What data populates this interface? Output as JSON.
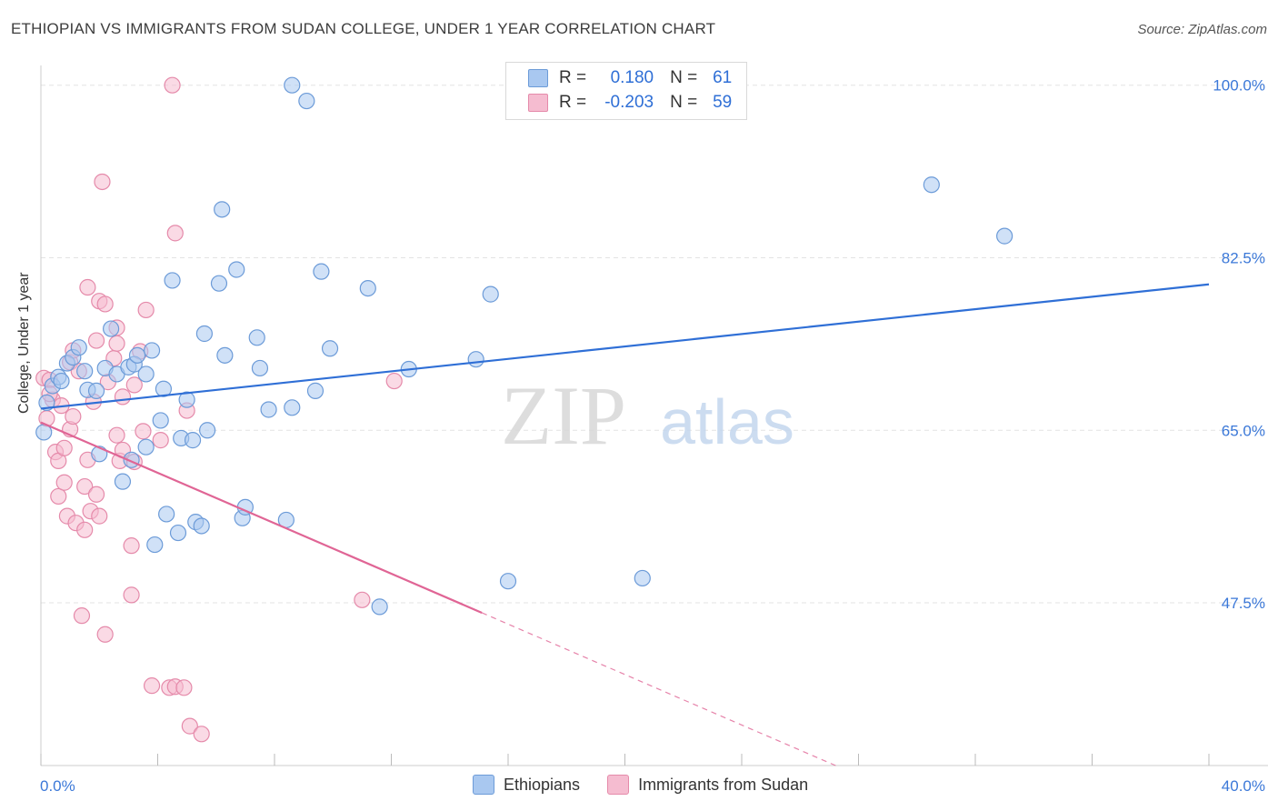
{
  "title": "ETHIOPIAN VS IMMIGRANTS FROM SUDAN COLLEGE, UNDER 1 YEAR CORRELATION CHART",
  "source": "Source: ZipAtlas.com",
  "watermark": {
    "zip": "ZIP",
    "atlas": "atlas"
  },
  "colors": {
    "blue_fill": "#a9c8f0",
    "blue_stroke": "#6c9bd8",
    "blue_line": "#2f6fd6",
    "pink_fill": "#f5bcd0",
    "pink_stroke": "#e58aaa",
    "pink_line": "#e06595",
    "axis_label": "#3b78d8",
    "grid": "#e3e3e3"
  },
  "legend": {
    "rows": [
      {
        "r_label": "R =",
        "r_value": "0.180",
        "n_label": "N =",
        "n_value": "61",
        "color": "#a9c8f0"
      },
      {
        "r_label": "R =",
        "r_value": "-0.203",
        "n_label": "N =",
        "n_value": "59",
        "color": "#f5bcd0"
      }
    ]
  },
  "bottom_legend": [
    {
      "label": "Ethiopians",
      "color": "#a9c8f0"
    },
    {
      "label": "Immigrants from Sudan",
      "color": "#f5bcd0"
    }
  ],
  "chart_data": {
    "type": "scatter",
    "title": "ETHIOPIAN VS IMMIGRANTS FROM SUDAN COLLEGE, UNDER 1 YEAR CORRELATION CHART",
    "xlabel": "",
    "ylabel": "College, Under 1 year",
    "xlim": [
      0,
      40
    ],
    "ylim": [
      31,
      102
    ],
    "x_tick_labels": [
      {
        "value": 0,
        "label": "0.0%"
      },
      {
        "value": 40,
        "label": "40.0%"
      }
    ],
    "y_tick_labels": [
      {
        "value": 100,
        "label": "100.0%"
      },
      {
        "value": 82.5,
        "label": "82.5%"
      },
      {
        "value": 65,
        "label": "65.0%"
      },
      {
        "value": 47.5,
        "label": "47.5%"
      }
    ],
    "series": [
      {
        "name": "Ethiopians",
        "r": 0.18,
        "n": 61,
        "trend": {
          "x0": 0,
          "y0": 67.2,
          "x1": 40,
          "y1": 79.8,
          "dash_from_x": null
        },
        "points": [
          [
            0.1,
            64.8
          ],
          [
            0.2,
            67.8
          ],
          [
            0.4,
            69.5
          ],
          [
            0.6,
            70.4
          ],
          [
            0.7,
            70.0
          ],
          [
            0.9,
            71.8
          ],
          [
            1.1,
            72.4
          ],
          [
            1.3,
            73.4
          ],
          [
            1.5,
            71.0
          ],
          [
            1.6,
            69.1
          ],
          [
            1.9,
            69.0
          ],
          [
            2.0,
            62.6
          ],
          [
            2.2,
            71.3
          ],
          [
            2.4,
            75.3
          ],
          [
            2.6,
            70.7
          ],
          [
            2.8,
            59.8
          ],
          [
            3.0,
            71.4
          ],
          [
            3.1,
            62.0
          ],
          [
            3.2,
            71.7
          ],
          [
            3.3,
            72.6
          ],
          [
            3.6,
            63.3
          ],
          [
            3.6,
            70.7
          ],
          [
            3.8,
            73.1
          ],
          [
            3.9,
            53.4
          ],
          [
            4.1,
            66.0
          ],
          [
            4.2,
            69.2
          ],
          [
            4.3,
            56.5
          ],
          [
            4.5,
            80.2
          ],
          [
            4.7,
            54.6
          ],
          [
            4.8,
            64.2
          ],
          [
            5.0,
            68.1
          ],
          [
            5.2,
            64.0
          ],
          [
            5.3,
            55.7
          ],
          [
            5.5,
            55.3
          ],
          [
            5.6,
            74.8
          ],
          [
            5.7,
            65.0
          ],
          [
            6.1,
            79.9
          ],
          [
            6.2,
            87.4
          ],
          [
            6.3,
            72.6
          ],
          [
            6.7,
            81.3
          ],
          [
            6.9,
            56.1
          ],
          [
            7.0,
            57.2
          ],
          [
            7.4,
            74.4
          ],
          [
            7.5,
            71.3
          ],
          [
            7.8,
            67.1
          ],
          [
            8.4,
            55.9
          ],
          [
            8.6,
            67.3
          ],
          [
            8.6,
            100.0
          ],
          [
            9.1,
            98.4
          ],
          [
            9.4,
            69.0
          ],
          [
            9.6,
            81.1
          ],
          [
            9.9,
            73.3
          ],
          [
            11.2,
            79.4
          ],
          [
            11.6,
            47.1
          ],
          [
            12.6,
            71.2
          ],
          [
            14.9,
            72.2
          ],
          [
            15.4,
            78.8
          ],
          [
            16.0,
            49.7
          ],
          [
            20.6,
            50.0
          ],
          [
            30.5,
            89.9
          ],
          [
            33.0,
            84.7
          ]
        ]
      },
      {
        "name": "Immigrants from Sudan",
        "r": -0.203,
        "n": 59,
        "trend": {
          "x0": 0,
          "y0": 65.8,
          "x1": 28,
          "y1": 30.0,
          "dash_from_x": 15.1
        },
        "points": [
          [
            0.1,
            70.3
          ],
          [
            0.2,
            66.2
          ],
          [
            0.3,
            70.1
          ],
          [
            0.4,
            68.1
          ],
          [
            0.5,
            62.8
          ],
          [
            0.6,
            61.9
          ],
          [
            0.6,
            58.3
          ],
          [
            0.7,
            67.5
          ],
          [
            0.8,
            59.7
          ],
          [
            0.8,
            63.2
          ],
          [
            0.9,
            56.3
          ],
          [
            1.0,
            65.1
          ],
          [
            1.0,
            71.9
          ],
          [
            1.1,
            73.1
          ],
          [
            1.2,
            55.6
          ],
          [
            1.3,
            71.0
          ],
          [
            1.4,
            46.2
          ],
          [
            1.5,
            54.9
          ],
          [
            1.5,
            59.3
          ],
          [
            1.6,
            79.5
          ],
          [
            1.6,
            62.0
          ],
          [
            1.7,
            56.8
          ],
          [
            1.8,
            67.9
          ],
          [
            1.9,
            74.1
          ],
          [
            1.9,
            58.5
          ],
          [
            2.0,
            78.1
          ],
          [
            2.0,
            56.3
          ],
          [
            2.1,
            90.2
          ],
          [
            2.2,
            77.8
          ],
          [
            2.2,
            44.3
          ],
          [
            2.3,
            69.9
          ],
          [
            2.5,
            72.3
          ],
          [
            2.6,
            73.8
          ],
          [
            2.6,
            75.4
          ],
          [
            2.6,
            64.5
          ],
          [
            2.7,
            61.9
          ],
          [
            2.8,
            68.4
          ],
          [
            2.8,
            63.0
          ],
          [
            3.1,
            53.3
          ],
          [
            3.1,
            48.3
          ],
          [
            3.2,
            69.6
          ],
          [
            3.2,
            61.8
          ],
          [
            3.4,
            73.0
          ],
          [
            3.5,
            64.9
          ],
          [
            3.6,
            77.2
          ],
          [
            3.8,
            39.1
          ],
          [
            4.1,
            64.0
          ],
          [
            4.4,
            38.9
          ],
          [
            4.5,
            100.0
          ],
          [
            4.6,
            39.0
          ],
          [
            4.6,
            85.0
          ],
          [
            4.9,
            38.9
          ],
          [
            5.1,
            35.0
          ],
          [
            5.5,
            34.2
          ],
          [
            11.0,
            47.8
          ],
          [
            12.1,
            70.0
          ],
          [
            5.0,
            67.0
          ],
          [
            0.3,
            68.7
          ],
          [
            1.1,
            66.4
          ]
        ]
      }
    ]
  }
}
